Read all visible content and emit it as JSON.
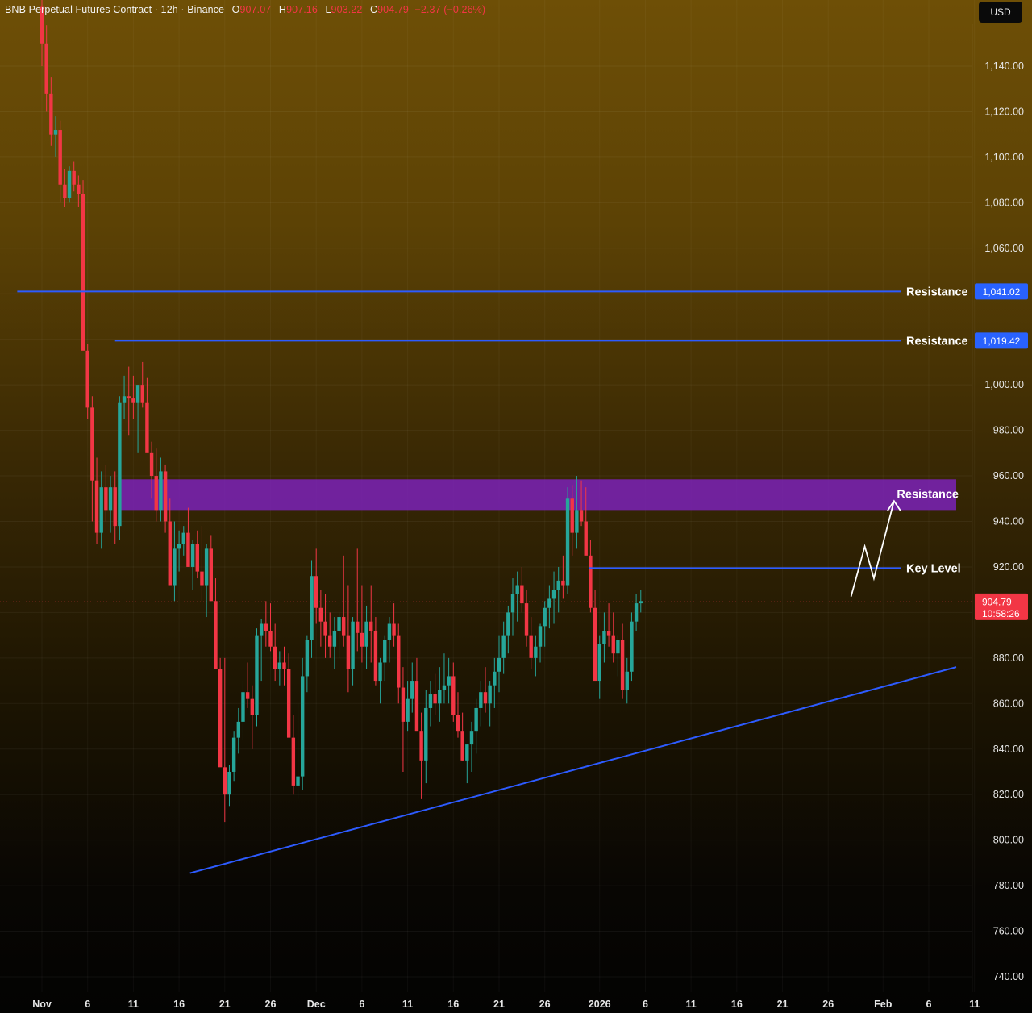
{
  "header": {
    "symbol": "BNB Perpetual Futures Contract · 12h · Binance",
    "open_label": "O",
    "open": "907.07",
    "high_label": "H",
    "high": "907.16",
    "low_label": "L",
    "low": "903.22",
    "close_label": "C",
    "close": "904.79",
    "change": "−2.37 (−0.26%)"
  },
  "currency_button": "USD",
  "colors": {
    "up": "#26a69a",
    "down": "#f23645",
    "level_line": "#2d5bff",
    "zone": "#7b22b8",
    "badge": "#2962ff",
    "price_badge": "#f23645"
  },
  "chart_data": {
    "type": "candlestick",
    "ylim": [
      734,
      1166
    ],
    "y_ticks": [
      740,
      760,
      780,
      800,
      820,
      840,
      860,
      880,
      900,
      920,
      940,
      960,
      980,
      1000,
      1020,
      1040,
      1060,
      1080,
      1100,
      1120,
      1140
    ],
    "y_tick_labels": [
      "740.00",
      "760.00",
      "780.00",
      "800.00",
      "820.00",
      "840.00",
      "860.00",
      "880.00",
      "900.00",
      "920.00",
      "940.00",
      "960.00",
      "980.00",
      "1,000.00",
      "1,020.00",
      "1,040.00",
      "1,060.00",
      "1,080.00",
      "1,100.00",
      "1,120.00",
      "1,140.00"
    ],
    "x_ticks": [
      {
        "day": 0,
        "label": "Nov",
        "bold": true
      },
      {
        "day": 5,
        "label": "6"
      },
      {
        "day": 10,
        "label": "11"
      },
      {
        "day": 15,
        "label": "16"
      },
      {
        "day": 20,
        "label": "21"
      },
      {
        "day": 25,
        "label": "26"
      },
      {
        "day": 30,
        "label": "Dec",
        "bold": true
      },
      {
        "day": 35,
        "label": "6"
      },
      {
        "day": 40,
        "label": "11"
      },
      {
        "day": 45,
        "label": "16"
      },
      {
        "day": 50,
        "label": "21"
      },
      {
        "day": 55,
        "label": "26"
      },
      {
        "day": 61,
        "label": "2026",
        "bold": true
      },
      {
        "day": 66,
        "label": "6"
      },
      {
        "day": 71,
        "label": "11"
      },
      {
        "day": 76,
        "label": "16"
      },
      {
        "day": 81,
        "label": "21"
      },
      {
        "day": 86,
        "label": "26"
      },
      {
        "day": 92,
        "label": "Feb",
        "bold": true
      },
      {
        "day": 97,
        "label": "6"
      },
      {
        "day": 102,
        "label": "11"
      }
    ],
    "candles_ohlc": [
      [
        1166,
        1172,
        1140,
        1150
      ],
      [
        1150,
        1158,
        1120,
        1128
      ],
      [
        1128,
        1135,
        1105,
        1110
      ],
      [
        1110,
        1118,
        1100,
        1112
      ],
      [
        1112,
        1116,
        1080,
        1088
      ],
      [
        1088,
        1095,
        1078,
        1082
      ],
      [
        1082,
        1096,
        1080,
        1094
      ],
      [
        1094,
        1098,
        1085,
        1088
      ],
      [
        1088,
        1092,
        1078,
        1084
      ],
      [
        1084,
        1090,
        1060,
        1015
      ],
      [
        1015,
        1018,
        985,
        990
      ],
      [
        990,
        995,
        940,
        958
      ],
      [
        958,
        968,
        930,
        935
      ],
      [
        935,
        962,
        928,
        955
      ],
      [
        955,
        965,
        940,
        945
      ],
      [
        945,
        960,
        935,
        955
      ],
      [
        955,
        962,
        930,
        938
      ],
      [
        938,
        995,
        932,
        992
      ],
      [
        992,
        1004,
        985,
        995
      ],
      [
        995,
        1008,
        978,
        994
      ],
      [
        994,
        1004,
        985,
        992
      ],
      [
        992,
        1000,
        970,
        1000
      ],
      [
        1000,
        1010,
        990,
        992
      ],
      [
        992,
        1003,
        978,
        970
      ],
      [
        970,
        975,
        950,
        960
      ],
      [
        960,
        972,
        940,
        945
      ],
      [
        945,
        968,
        940,
        962
      ],
      [
        962,
        965,
        935,
        940
      ],
      [
        940,
        950,
        915,
        912
      ],
      [
        912,
        940,
        905,
        928
      ],
      [
        928,
        936,
        918,
        930
      ],
      [
        930,
        938,
        925,
        935
      ],
      [
        935,
        946,
        922,
        920
      ],
      [
        920,
        932,
        910,
        930
      ],
      [
        930,
        936,
        915,
        918
      ],
      [
        918,
        938,
        905,
        912
      ],
      [
        912,
        930,
        898,
        928
      ],
      [
        928,
        934,
        905,
        905
      ],
      [
        905,
        915,
        880,
        875
      ],
      [
        875,
        880,
        835,
        832
      ],
      [
        832,
        880,
        808,
        820
      ],
      [
        820,
        833,
        815,
        830
      ],
      [
        830,
        848,
        826,
        845
      ],
      [
        845,
        858,
        838,
        852
      ],
      [
        852,
        870,
        844,
        865
      ],
      [
        865,
        878,
        858,
        862
      ],
      [
        862,
        868,
        840,
        855
      ],
      [
        855,
        893,
        850,
        890
      ],
      [
        890,
        897,
        870,
        895
      ],
      [
        895,
        905,
        885,
        892
      ],
      [
        892,
        904,
        883,
        885
      ],
      [
        885,
        895,
        870,
        875
      ],
      [
        875,
        883,
        868,
        878
      ],
      [
        878,
        885,
        868,
        875
      ],
      [
        875,
        882,
        848,
        845
      ],
      [
        845,
        855,
        820,
        824
      ],
      [
        824,
        860,
        818,
        828
      ],
      [
        828,
        880,
        822,
        872
      ],
      [
        872,
        890,
        865,
        888
      ],
      [
        888,
        923,
        880,
        916
      ],
      [
        916,
        928,
        895,
        902
      ],
      [
        902,
        910,
        885,
        896
      ],
      [
        896,
        908,
        880,
        890
      ],
      [
        890,
        900,
        880,
        885
      ],
      [
        885,
        898,
        875,
        892
      ],
      [
        892,
        900,
        880,
        898
      ],
      [
        898,
        925,
        885,
        890
      ],
      [
        890,
        912,
        865,
        875
      ],
      [
        875,
        898,
        868,
        896
      ],
      [
        896,
        928,
        883,
        891
      ],
      [
        891,
        912,
        878,
        885
      ],
      [
        885,
        903,
        875,
        896
      ],
      [
        896,
        912,
        878,
        892
      ],
      [
        892,
        898,
        868,
        870
      ],
      [
        870,
        880,
        860,
        878
      ],
      [
        878,
        890,
        870,
        888
      ],
      [
        888,
        898,
        878,
        895
      ],
      [
        895,
        904,
        885,
        890
      ],
      [
        890,
        895,
        860,
        867
      ],
      [
        867,
        876,
        830,
        852
      ],
      [
        852,
        870,
        848,
        862
      ],
      [
        862,
        878,
        856,
        870
      ],
      [
        870,
        880,
        860,
        848
      ],
      [
        848,
        856,
        818,
        835
      ],
      [
        835,
        866,
        825,
        858
      ],
      [
        858,
        870,
        850,
        864
      ],
      [
        864,
        873,
        855,
        860
      ],
      [
        860,
        876,
        852,
        866
      ],
      [
        866,
        882,
        860,
        868
      ],
      [
        868,
        880,
        860,
        872
      ],
      [
        872,
        878,
        852,
        855
      ],
      [
        855,
        865,
        845,
        848
      ],
      [
        848,
        856,
        835,
        835
      ],
      [
        835,
        842,
        825,
        842
      ],
      [
        842,
        852,
        830,
        848
      ],
      [
        848,
        862,
        838,
        858
      ],
      [
        858,
        870,
        850,
        865
      ],
      [
        865,
        876,
        856,
        860
      ],
      [
        860,
        870,
        850,
        868
      ],
      [
        868,
        880,
        858,
        874
      ],
      [
        874,
        890,
        865,
        880
      ],
      [
        880,
        896,
        873,
        890
      ],
      [
        890,
        903,
        882,
        900
      ],
      [
        900,
        915,
        890,
        908
      ],
      [
        908,
        918,
        896,
        912
      ],
      [
        912,
        920,
        900,
        904
      ],
      [
        904,
        910,
        885,
        890
      ],
      [
        890,
        898,
        875,
        880
      ],
      [
        880,
        890,
        872,
        885
      ],
      [
        885,
        895,
        878,
        894
      ],
      [
        894,
        905,
        885,
        902
      ],
      [
        902,
        912,
        893,
        906
      ],
      [
        906,
        918,
        895,
        910
      ],
      [
        910,
        920,
        900,
        914
      ],
      [
        914,
        925,
        906,
        912
      ],
      [
        912,
        955,
        908,
        950
      ],
      [
        950,
        956,
        925,
        935
      ],
      [
        935,
        960,
        928,
        945
      ],
      [
        945,
        958,
        938,
        940
      ],
      [
        940,
        955,
        930,
        925
      ],
      [
        925,
        932,
        900,
        902
      ],
      [
        902,
        910,
        885,
        870
      ],
      [
        870,
        890,
        862,
        886
      ],
      [
        886,
        900,
        878,
        892
      ],
      [
        892,
        904,
        885,
        890
      ],
      [
        890,
        900,
        878,
        882
      ],
      [
        882,
        890,
        872,
        888
      ],
      [
        888,
        895,
        862,
        866
      ],
      [
        866,
        880,
        860,
        874
      ],
      [
        874,
        900,
        870,
        896
      ],
      [
        896,
        908,
        892,
        904
      ],
      [
        904,
        910,
        900,
        905
      ]
    ],
    "candle_day_step": 0.5,
    "levels": [
      {
        "name": "Resistance",
        "value": 1041.02,
        "label": "1,041.02",
        "from_day": -2.7
      },
      {
        "name": "Resistance",
        "value": 1019.42,
        "label": "1,019.42",
        "from_day": 8.0
      }
    ],
    "key_level": {
      "name": "Key Level",
      "value": 919.5,
      "from_day": 59.8
    },
    "resistance_zone": {
      "name": "Resistance",
      "low": 945,
      "high": 958.5,
      "from_day": 8.6,
      "to_day": 100.0
    },
    "trendline": {
      "from": {
        "day": 16.2,
        "price": 785.5
      },
      "to": {
        "day": 100.0,
        "price": 876.0
      }
    },
    "projection_path": [
      {
        "day": 88.5,
        "price": 907
      },
      {
        "day": 90.0,
        "price": 929
      },
      {
        "day": 91.0,
        "price": 915
      },
      {
        "day": 93.2,
        "price": 949
      }
    ],
    "last_price": {
      "value": 904.79,
      "label": "904.79",
      "countdown": "10:58:26"
    }
  }
}
